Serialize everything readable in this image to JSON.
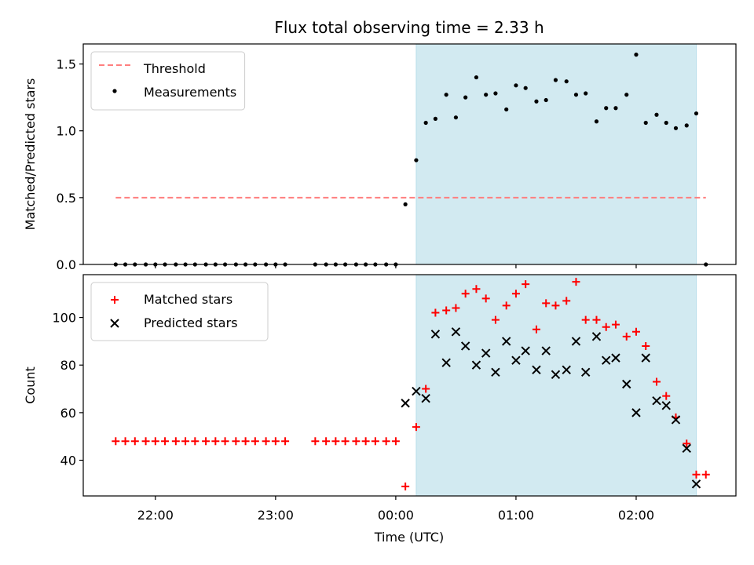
{
  "chart_data": {
    "type": "scatter",
    "title": "Flux total observing time = 2.33 h",
    "xlabel": "Time (UTC)",
    "x_ticks": [
      {
        "t": -2.0,
        "label": "22:00"
      },
      {
        "t": -1.0,
        "label": "23:00"
      },
      {
        "t": 0.0,
        "label": "00:00"
      },
      {
        "t": 1.0,
        "label": "01:00"
      },
      {
        "t": 2.0,
        "label": "02:00"
      }
    ],
    "xlim": [
      -2.6,
      2.83
    ],
    "shaded_interval": [
      0.17,
      2.5
    ],
    "shade_color": "#add8e6",
    "panels": [
      {
        "ylabel": "Matched/Predicted stars",
        "ylim": [
          0,
          1.65
        ],
        "y_ticks": [
          {
            "v": 0.0,
            "label": "0.0"
          },
          {
            "v": 0.5,
            "label": "0.5"
          },
          {
            "v": 1.0,
            "label": "1.0"
          },
          {
            "v": 1.5,
            "label": "1.5"
          }
        ],
        "threshold": {
          "name": "Threshold",
          "value": 0.5,
          "x_range": [
            -2.33,
            2.58
          ],
          "color": "#ff7f7f"
        },
        "series": [
          {
            "name": "Measurements",
            "marker": "dot",
            "color": "#000000",
            "points": [
              [
                -2.33,
                0
              ],
              [
                -2.25,
                0
              ],
              [
                -2.17,
                0
              ],
              [
                -2.08,
                0
              ],
              [
                -2.0,
                0
              ],
              [
                -1.92,
                0
              ],
              [
                -1.83,
                0
              ],
              [
                -1.75,
                0
              ],
              [
                -1.67,
                0
              ],
              [
                -1.58,
                0
              ],
              [
                -1.5,
                0
              ],
              [
                -1.42,
                0
              ],
              [
                -1.33,
                0
              ],
              [
                -1.25,
                0
              ],
              [
                -1.17,
                0
              ],
              [
                -1.08,
                0
              ],
              [
                -1.0,
                0
              ],
              [
                -0.92,
                0
              ],
              [
                -0.67,
                0
              ],
              [
                -0.58,
                0
              ],
              [
                -0.5,
                0
              ],
              [
                -0.42,
                0
              ],
              [
                -0.33,
                0
              ],
              [
                -0.25,
                0
              ],
              [
                -0.17,
                0
              ],
              [
                -0.08,
                0
              ],
              [
                0.0,
                0
              ],
              [
                0.08,
                0.45
              ],
              [
                0.17,
                0.78
              ],
              [
                0.25,
                1.06
              ],
              [
                0.33,
                1.09
              ],
              [
                0.42,
                1.27
              ],
              [
                0.5,
                1.1
              ],
              [
                0.58,
                1.25
              ],
              [
                0.67,
                1.4
              ],
              [
                0.75,
                1.27
              ],
              [
                0.83,
                1.28
              ],
              [
                0.92,
                1.16
              ],
              [
                1.0,
                1.34
              ],
              [
                1.08,
                1.32
              ],
              [
                1.17,
                1.22
              ],
              [
                1.25,
                1.23
              ],
              [
                1.33,
                1.38
              ],
              [
                1.42,
                1.37
              ],
              [
                1.5,
                1.27
              ],
              [
                1.58,
                1.28
              ],
              [
                1.67,
                1.07
              ],
              [
                1.75,
                1.17
              ],
              [
                1.83,
                1.17
              ],
              [
                1.92,
                1.27
              ],
              [
                2.0,
                1.57
              ],
              [
                2.08,
                1.06
              ],
              [
                2.17,
                1.12
              ],
              [
                2.25,
                1.06
              ],
              [
                2.33,
                1.02
              ],
              [
                2.42,
                1.04
              ],
              [
                2.5,
                1.13
              ],
              [
                2.58,
                0
              ]
            ]
          }
        ]
      },
      {
        "ylabel": "Count",
        "ylim": [
          25,
          118
        ],
        "y_ticks": [
          {
            "v": 40,
            "label": "40"
          },
          {
            "v": 60,
            "label": "60"
          },
          {
            "v": 80,
            "label": "80"
          },
          {
            "v": 100,
            "label": "100"
          }
        ],
        "series": [
          {
            "name": "Matched stars",
            "marker": "plus",
            "color": "#ff0000",
            "points": [
              [
                -2.33,
                48
              ],
              [
                -2.25,
                48
              ],
              [
                -2.17,
                48
              ],
              [
                -2.08,
                48
              ],
              [
                -2.0,
                48
              ],
              [
                -1.92,
                48
              ],
              [
                -1.83,
                48
              ],
              [
                -1.75,
                48
              ],
              [
                -1.67,
                48
              ],
              [
                -1.58,
                48
              ],
              [
                -1.5,
                48
              ],
              [
                -1.42,
                48
              ],
              [
                -1.33,
                48
              ],
              [
                -1.25,
                48
              ],
              [
                -1.17,
                48
              ],
              [
                -1.08,
                48
              ],
              [
                -1.0,
                48
              ],
              [
                -0.92,
                48
              ],
              [
                -0.67,
                48
              ],
              [
                -0.58,
                48
              ],
              [
                -0.5,
                48
              ],
              [
                -0.42,
                48
              ],
              [
                -0.33,
                48
              ],
              [
                -0.25,
                48
              ],
              [
                -0.17,
                48
              ],
              [
                -0.08,
                48
              ],
              [
                0.0,
                48
              ],
              [
                0.08,
                29
              ],
              [
                0.17,
                54
              ],
              [
                0.25,
                70
              ],
              [
                0.33,
                102
              ],
              [
                0.42,
                103
              ],
              [
                0.5,
                104
              ],
              [
                0.58,
                110
              ],
              [
                0.67,
                112
              ],
              [
                0.75,
                108
              ],
              [
                0.83,
                99
              ],
              [
                0.92,
                105
              ],
              [
                1.0,
                110
              ],
              [
                1.08,
                114
              ],
              [
                1.17,
                95
              ],
              [
                1.25,
                106
              ],
              [
                1.33,
                105
              ],
              [
                1.42,
                107
              ],
              [
                1.5,
                115
              ],
              [
                1.58,
                99
              ],
              [
                1.67,
                99
              ],
              [
                1.75,
                96
              ],
              [
                1.83,
                97
              ],
              [
                1.92,
                92
              ],
              [
                2.0,
                94
              ],
              [
                2.08,
                88
              ],
              [
                2.17,
                73
              ],
              [
                2.25,
                67
              ],
              [
                2.33,
                58
              ],
              [
                2.42,
                47
              ],
              [
                2.5,
                34
              ],
              [
                2.58,
                34
              ]
            ]
          },
          {
            "name": "Predicted stars",
            "marker": "x",
            "color": "#000000",
            "points": [
              [
                0.08,
                64
              ],
              [
                0.17,
                69
              ],
              [
                0.25,
                66
              ],
              [
                0.33,
                93
              ],
              [
                0.42,
                81
              ],
              [
                0.5,
                94
              ],
              [
                0.58,
                88
              ],
              [
                0.67,
                80
              ],
              [
                0.75,
                85
              ],
              [
                0.83,
                77
              ],
              [
                0.92,
                90
              ],
              [
                1.0,
                82
              ],
              [
                1.08,
                86
              ],
              [
                1.17,
                78
              ],
              [
                1.25,
                86
              ],
              [
                1.33,
                76
              ],
              [
                1.42,
                78
              ],
              [
                1.5,
                90
              ],
              [
                1.58,
                77
              ],
              [
                1.67,
                92
              ],
              [
                1.75,
                82
              ],
              [
                1.83,
                83
              ],
              [
                1.92,
                72
              ],
              [
                2.0,
                60
              ],
              [
                2.08,
                83
              ],
              [
                2.17,
                65
              ],
              [
                2.25,
                63
              ],
              [
                2.33,
                57
              ],
              [
                2.42,
                45
              ],
              [
                2.5,
                30
              ]
            ]
          }
        ]
      }
    ]
  }
}
